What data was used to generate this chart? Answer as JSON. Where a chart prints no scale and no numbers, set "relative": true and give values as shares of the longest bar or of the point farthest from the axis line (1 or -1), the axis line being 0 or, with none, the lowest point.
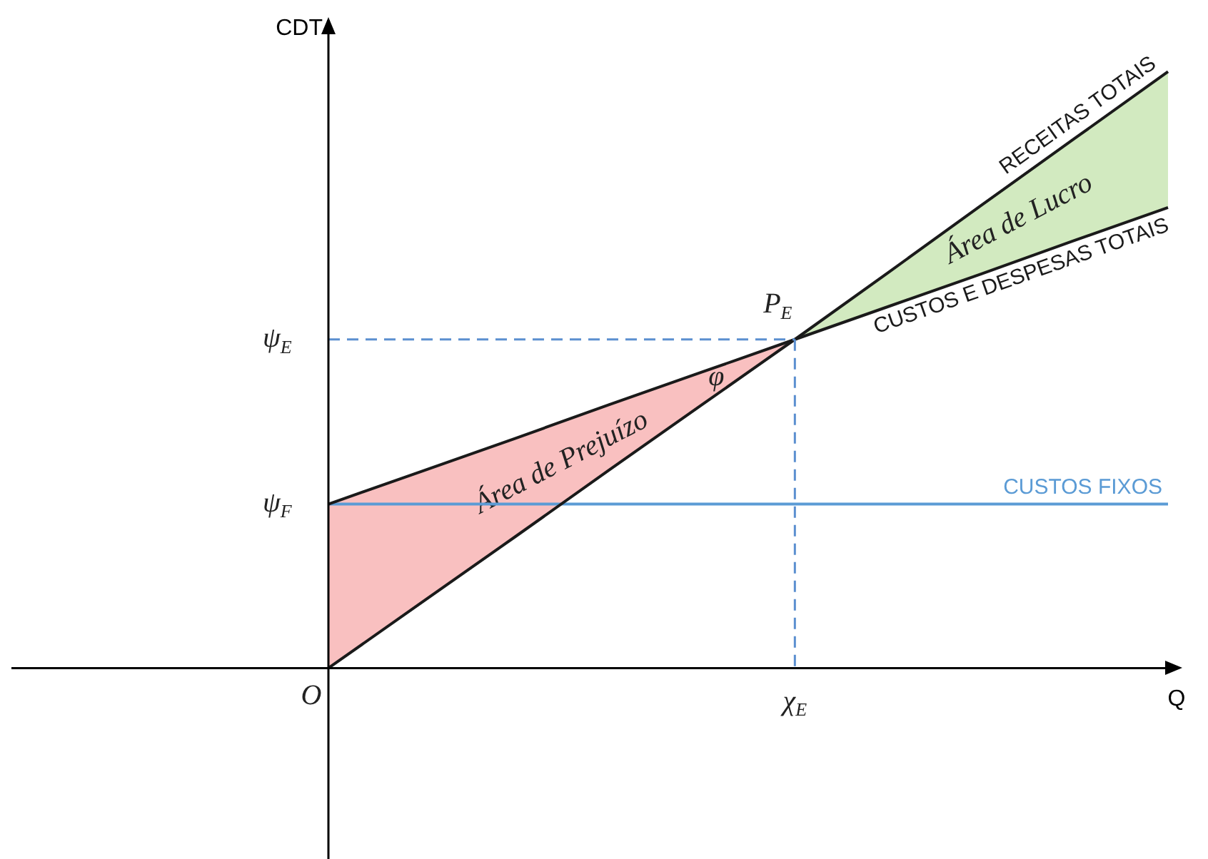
{
  "chart_data": {
    "type": "line",
    "relative": true,
    "xlabel": "Q",
    "ylabel": "CDT",
    "legend": false,
    "marker": "none",
    "categories": [
      null,
      null,
      null,
      null,
      null,
      null,
      null,
      null,
      null,
      null
    ],
    "series": [
      {
        "name": "RECEITAS TOTAIS",
        "color": "#1a1a1a",
        "values": [
          0,
          0.11,
          0.22,
          0.331,
          0.441,
          0.551,
          0.663,
          0.776,
          0.888,
          1
        ]
      },
      {
        "name": "CUSTOS E DESPESAS TOTAIS",
        "color": "#1a1a1a",
        "values": [
          0.275,
          0.33,
          0.385,
          0.441,
          0.496,
          0.551,
          0.606,
          0.661,
          0.717,
          0.772
        ]
      },
      {
        "name": "CUSTOS FIXOS",
        "color": "#5b9bd5",
        "values": [
          0.275,
          0.275,
          0.275,
          0.275,
          0.275,
          0.275,
          0.275,
          0.275,
          0.275,
          0.275
        ]
      }
    ],
    "annotations": [
      "O",
      "ψ$_{E}$",
      "ψ$_{F}$",
      "χ$_{E}$",
      "P$_{E}$",
      "φ",
      "Área de Prejuízo",
      "Área de Lucro"
    ]
  }
}
